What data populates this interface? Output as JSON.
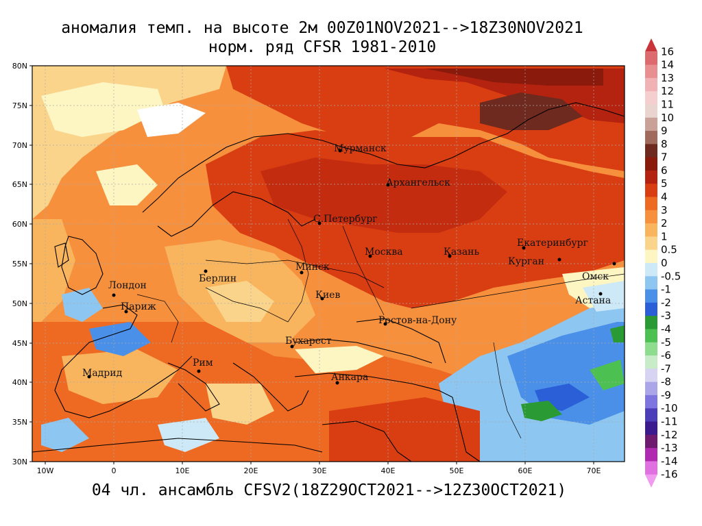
{
  "title": {
    "line1": "аномалия темп. на высоте 2м 00Z01NOV2021-->18Z30NOV2021",
    "line2": "норм. ряд CFSR 1981-2010"
  },
  "footer": "04 чл. ансамбль CFSV2(18Z29OCT2021-->12Z30OCT2021)",
  "axes": {
    "lat_labels": [
      "80N",
      "75N",
      "70N",
      "65N",
      "60N",
      "55N",
      "50N",
      "45N",
      "40N",
      "35N",
      "30N"
    ],
    "lon_labels": [
      "10W",
      "0",
      "10E",
      "20E",
      "30E",
      "40E",
      "50E",
      "60E",
      "70E"
    ]
  },
  "cities": [
    {
      "name": "Мурманск"
    },
    {
      "name": "Архангельск"
    },
    {
      "name": "С.Петербург"
    },
    {
      "name": "Москва"
    },
    {
      "name": "Казань"
    },
    {
      "name": "Екатеринбург"
    },
    {
      "name": "Курган"
    },
    {
      "name": "Омск"
    },
    {
      "name": "Астана"
    },
    {
      "name": "Минск"
    },
    {
      "name": "Берлин"
    },
    {
      "name": "Лондон"
    },
    {
      "name": "Париж"
    },
    {
      "name": "Киев"
    },
    {
      "name": "Ростов-на-Дону"
    },
    {
      "name": "Бухарест"
    },
    {
      "name": "Рим"
    },
    {
      "name": "Мадрид"
    },
    {
      "name": "Анкара"
    }
  ],
  "colorbar": {
    "labels": [
      "16",
      "14",
      "13",
      "12",
      "11",
      "10",
      "9",
      "8",
      "7",
      "6",
      "5",
      "4",
      "3",
      "2",
      "1",
      "0.5",
      "0",
      "-0.5",
      "-1",
      "-2",
      "-3",
      "-4",
      "-5",
      "-6",
      "-7",
      "-8",
      "-9",
      "-10",
      "-11",
      "-12",
      "-13",
      "-14",
      "-16"
    ],
    "colors": [
      "#c8343a",
      "#dd6a6e",
      "#e88f92",
      "#f0b2b4",
      "#f5cfd0",
      "#ead4cf",
      "#c9a197",
      "#a06a5d",
      "#6e2a1e",
      "#8a1a0c",
      "#b3230f",
      "#d93d12",
      "#ee6a22",
      "#f6903d",
      "#f9b45e",
      "#fbd48c",
      "#fdf5c2",
      "#cde9f7",
      "#8ec6f2",
      "#4a8fe8",
      "#2a5fd8",
      "#2a9a34",
      "#4cc050",
      "#8edc8e",
      "#c7ecc7",
      "#d6d4f2",
      "#aaa6e8",
      "#7e76de",
      "#4c3eb8",
      "#3a1a8c",
      "#6e1a6e",
      "#b02ab0",
      "#e070e0",
      "#f09af0"
    ]
  }
}
